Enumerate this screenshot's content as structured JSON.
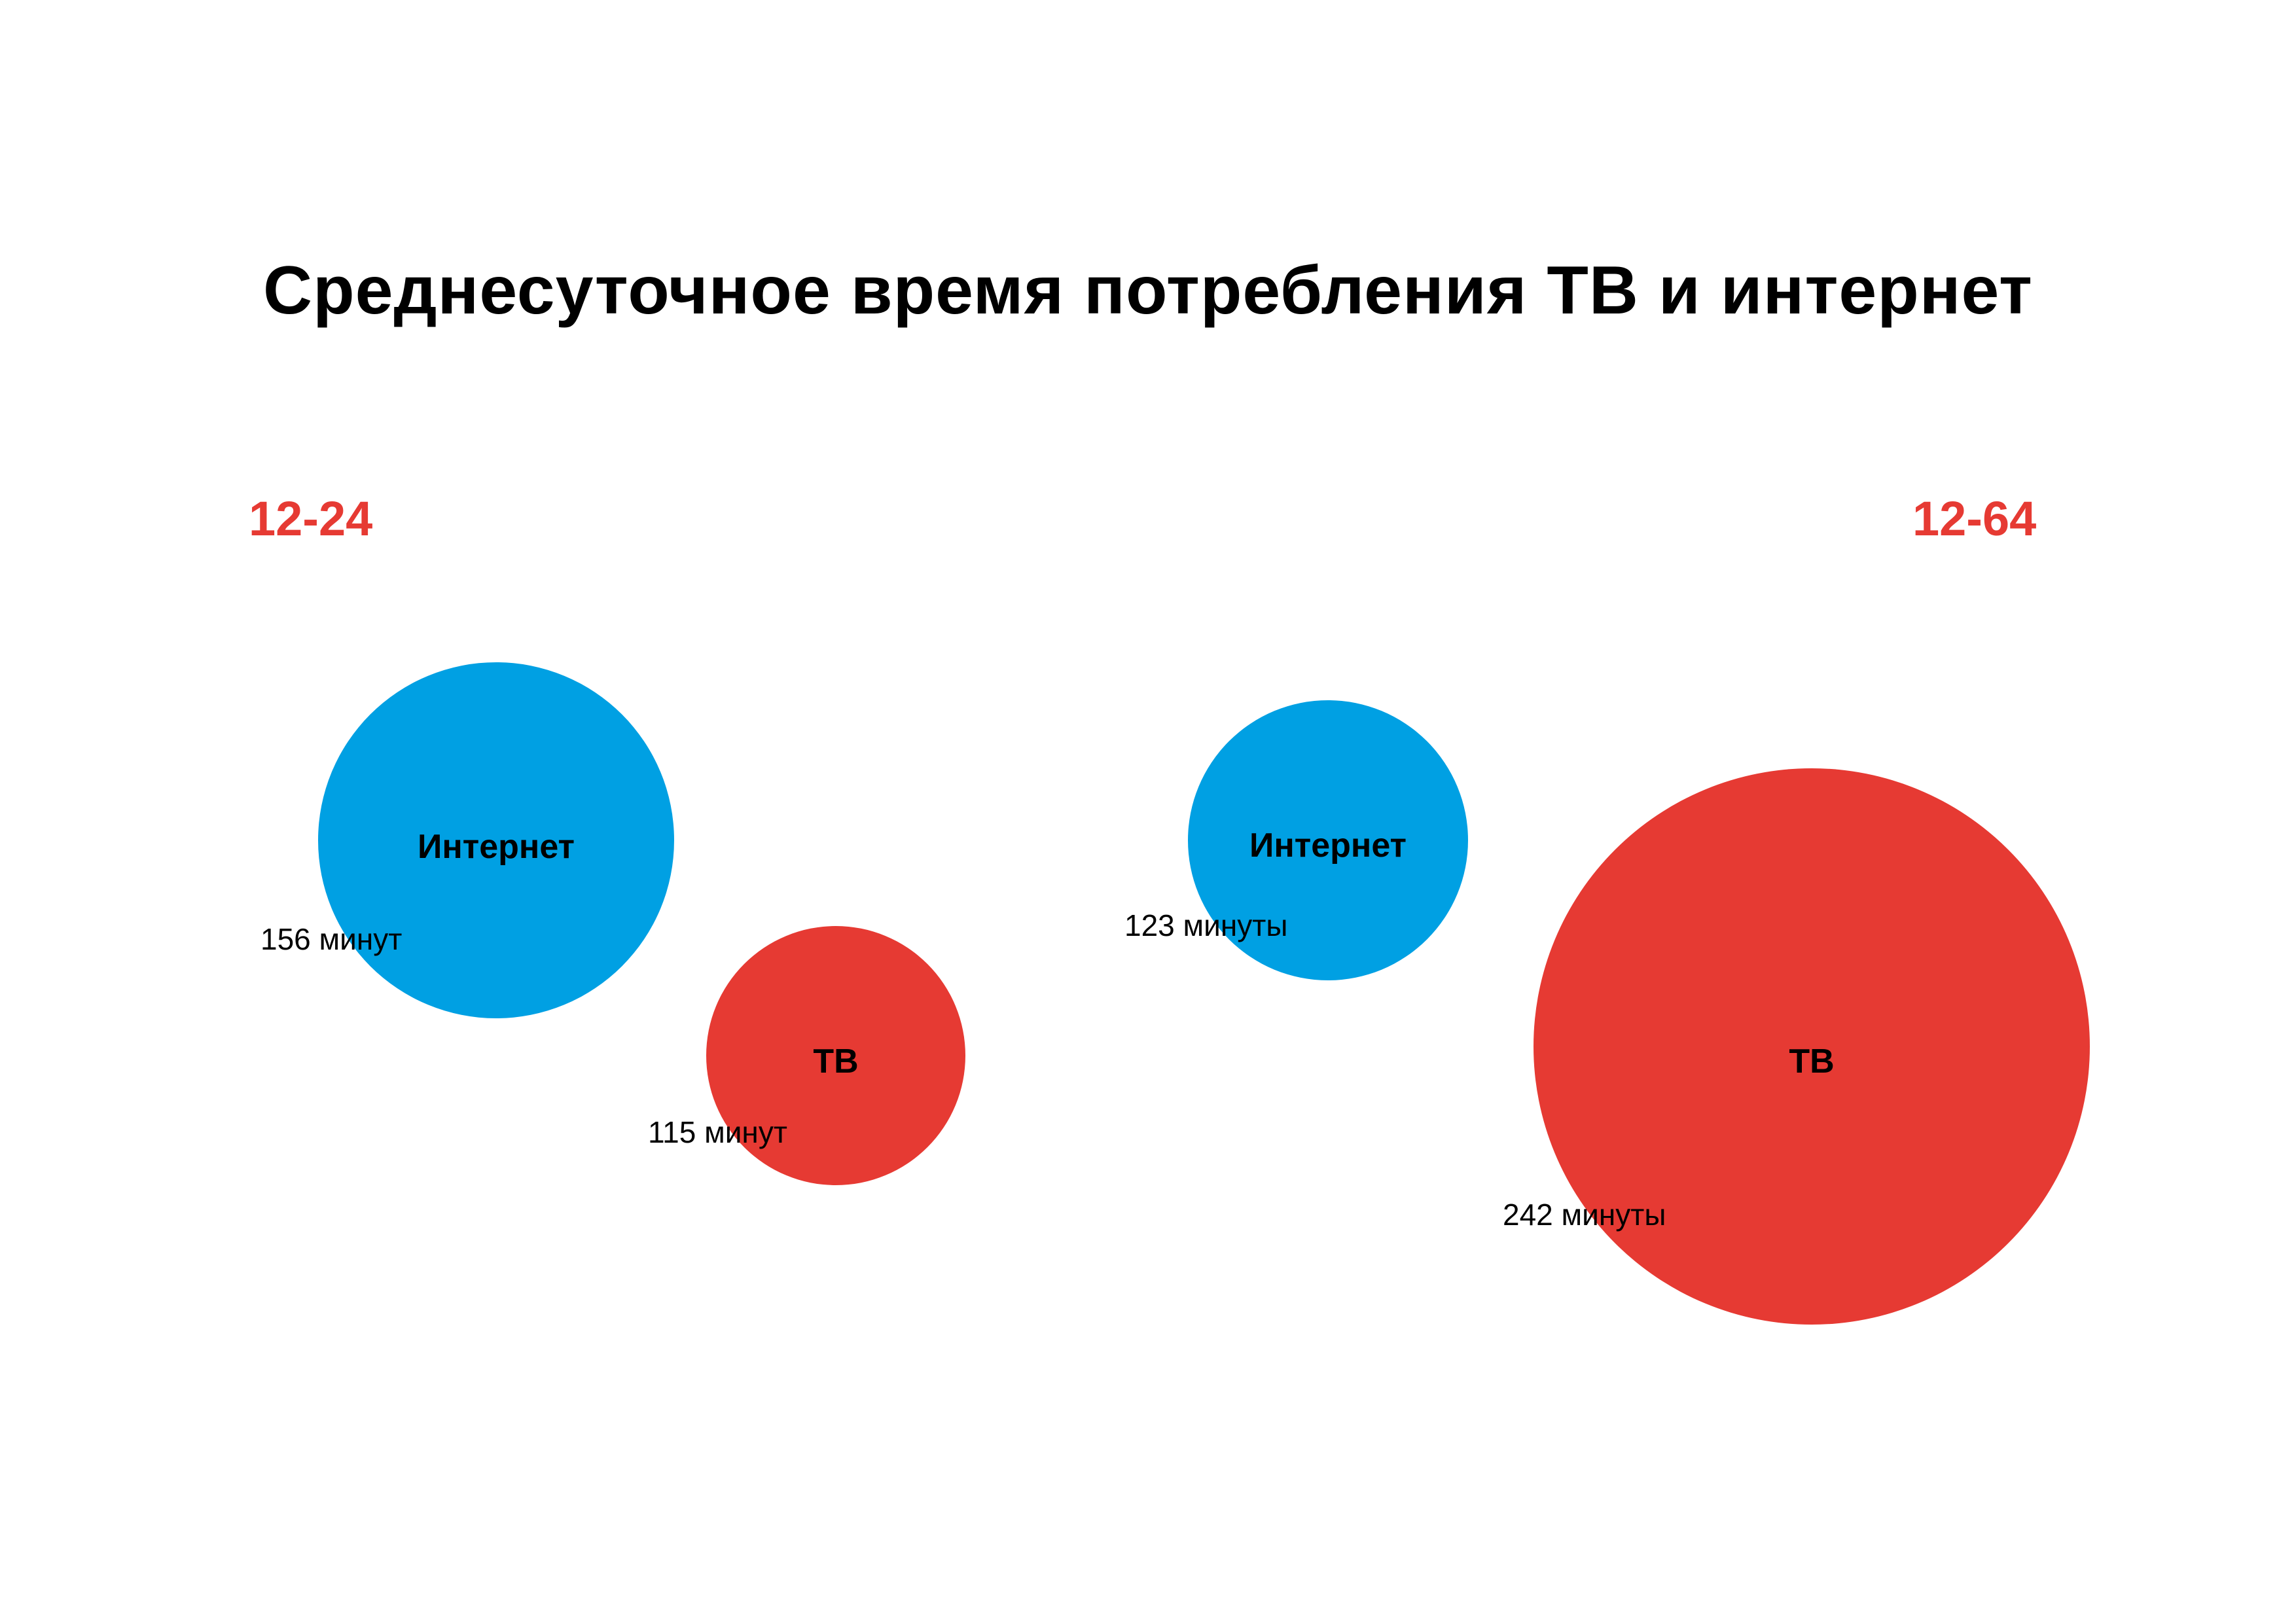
{
  "chart_data": {
    "type": "bubble",
    "title": "Среднесуточное время потребления ТВ и интернет",
    "colors": {
      "internet": "#00a0e3",
      "tv": "#e63a33",
      "group_label": "#e63a33"
    },
    "groups": [
      {
        "label": "12-24",
        "items": [
          {
            "name": "Интернет",
            "value": 156,
            "value_label": "156 минут"
          },
          {
            "name": "ТВ",
            "value": 115,
            "value_label": "115 минут"
          }
        ]
      },
      {
        "label": "12-64",
        "items": [
          {
            "name": "Интернет",
            "value": 123,
            "value_label": "123 минуты"
          },
          {
            "name": "ТВ",
            "value": 242,
            "value_label": "242 минуты"
          }
        ]
      }
    ]
  }
}
